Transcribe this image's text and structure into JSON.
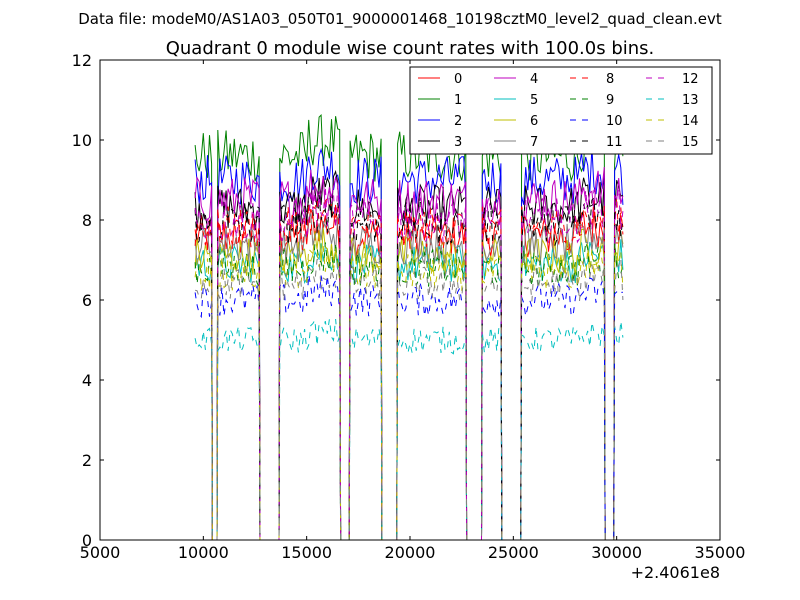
{
  "chart_data": {
    "type": "line",
    "suptitle": "Data file: modeM0/AS1A03_050T01_9000001468_10198cztM0_level2_quad_clean.evt",
    "title": "Quadrant 0 module wise count rates with 100.0s bins.",
    "xlabel": "",
    "ylabel": "",
    "x_offset_label": "+2.4061e8",
    "xlim": [
      5000,
      35000
    ],
    "ylim": [
      0,
      12
    ],
    "x_ticks": [
      5000,
      10000,
      15000,
      20000,
      25000,
      30000,
      35000
    ],
    "y_ticks": [
      0,
      2,
      4,
      6,
      8,
      10,
      12
    ],
    "grid": false,
    "legend": {
      "placement": "top-right",
      "columns": 4
    },
    "segments": [
      [
        9600,
        10400
      ],
      [
        10700,
        12700
      ],
      [
        13700,
        16600
      ],
      [
        17100,
        18600
      ],
      [
        19400,
        22700
      ],
      [
        23500,
        24400
      ],
      [
        25400,
        29400
      ],
      [
        29900,
        30300
      ]
    ],
    "series": [
      {
        "name": "0",
        "color": "#ff0000",
        "dash": "solid",
        "level": 7.6
      },
      {
        "name": "1",
        "color": "#008000",
        "dash": "solid",
        "level": 9.6
      },
      {
        "name": "2",
        "color": "#0000ff",
        "dash": "solid",
        "level": 9.0
      },
      {
        "name": "3",
        "color": "#000000",
        "dash": "solid",
        "level": 8.3
      },
      {
        "name": "4",
        "color": "#bf00bf",
        "dash": "solid",
        "level": 8.5
      },
      {
        "name": "5",
        "color": "#00bfbf",
        "dash": "solid",
        "level": 6.9
      },
      {
        "name": "6",
        "color": "#bfbf00",
        "dash": "solid",
        "level": 7.1
      },
      {
        "name": "7",
        "color": "#808080",
        "dash": "solid",
        "level": 7.4
      },
      {
        "name": "8",
        "color": "#ff0000",
        "dash": "dashed",
        "level": 7.8
      },
      {
        "name": "9",
        "color": "#008000",
        "dash": "dashed",
        "level": 6.8
      },
      {
        "name": "10",
        "color": "#0000ff",
        "dash": "dashed",
        "level": 6.0
      },
      {
        "name": "11",
        "color": "#000000",
        "dash": "dashed",
        "level": 7.9
      },
      {
        "name": "12",
        "color": "#bf00bf",
        "dash": "dashed",
        "level": 8.0
      },
      {
        "name": "13",
        "color": "#00bfbf",
        "dash": "dashed",
        "level": 5.0
      },
      {
        "name": "14",
        "color": "#bfbf00",
        "dash": "dashed",
        "level": 6.7
      },
      {
        "name": "15",
        "color": "#808080",
        "dash": "dashed",
        "level": 6.4
      }
    ]
  }
}
